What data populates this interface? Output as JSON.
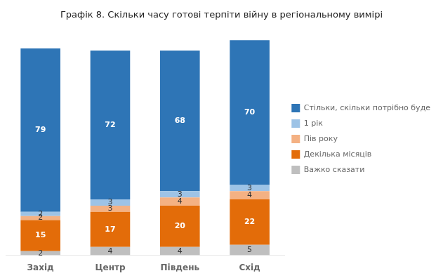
{
  "chart_data": {
    "type": "bar",
    "title": "Графік 8. Скільки часу готові терпіти війну в регіональному вимірі",
    "categories": [
      "Захід",
      "Центр",
      "Південь",
      "Схід"
    ],
    "stacked": true,
    "series": [
      {
        "name": "Важко сказати",
        "color": "#bfbfbf",
        "values": [
          2,
          4,
          4,
          5
        ]
      },
      {
        "name": "Декілька місяців",
        "color": "#e36c09",
        "values": [
          15,
          17,
          20,
          22
        ]
      },
      {
        "name": "Пів року",
        "color": "#f4b183",
        "values": [
          2,
          3,
          4,
          4
        ]
      },
      {
        "name": "1 рік",
        "color": "#9dc3e6",
        "values": [
          2,
          3,
          3,
          3
        ]
      },
      {
        "name": "Стільки, скільки потрібно буде",
        "color": "#2e75b6",
        "values": [
          79,
          72,
          68,
          70
        ]
      }
    ],
    "ylim": [
      0,
      110
    ],
    "data_labels": true,
    "tick_labels": "x",
    "grid": false,
    "legend": "right"
  }
}
